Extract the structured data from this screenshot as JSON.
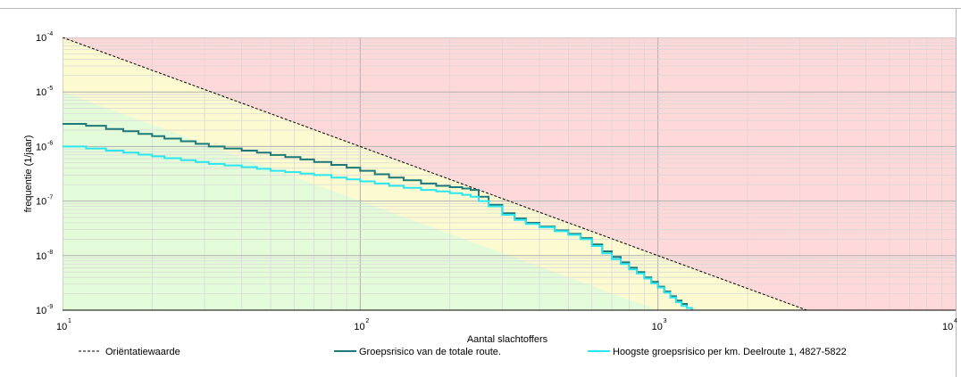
{
  "chart_data": {
    "type": "line",
    "x_scale": "log",
    "y_scale": "log",
    "xlabel": "Aantal slachtoffers",
    "ylabel": "frequentie (1/jaar)",
    "xlim": [
      10,
      10000
    ],
    "ylim": [
      1e-09,
      0.0001
    ],
    "x_ticks": [
      {
        "value": 10,
        "base": "10",
        "exp": "1"
      },
      {
        "value": 100,
        "base": "10",
        "exp": "2"
      },
      {
        "value": 1000,
        "base": "10",
        "exp": "3"
      },
      {
        "value": 10000,
        "base": "10",
        "exp": "4"
      }
    ],
    "y_ticks": [
      {
        "value": 0.0001,
        "base": "10",
        "exp": "-4"
      },
      {
        "value": 1e-05,
        "base": "10",
        "exp": "-5"
      },
      {
        "value": 1e-06,
        "base": "10",
        "exp": "-6"
      },
      {
        "value": 1e-07,
        "base": "10",
        "exp": "-7"
      },
      {
        "value": 1e-08,
        "base": "10",
        "exp": "-8"
      },
      {
        "value": 1e-09,
        "base": "10",
        "exp": "-9"
      }
    ],
    "grid": true,
    "zones": [
      {
        "name": "red",
        "color": "#ffd9d9"
      },
      {
        "name": "yellow",
        "color": "#fbfad0"
      },
      {
        "name": "green",
        "color": "#e4fbd9"
      }
    ],
    "series": [
      {
        "name": "Oriëntatiewaarde",
        "style": "dashed",
        "color": "#000000",
        "x": [
          10,
          3162
        ],
        "y": [
          0.0001,
          1e-09
        ]
      },
      {
        "name": "Groepsrisico van de totale route.",
        "style": "step",
        "color": "#1e7a78",
        "x": [
          10,
          12,
          14,
          16,
          18,
          20,
          22,
          25,
          28,
          31,
          35,
          40,
          45,
          50,
          56,
          63,
          70,
          80,
          90,
          100,
          112,
          125,
          140,
          160,
          180,
          200,
          220,
          235,
          250,
          270,
          300,
          330,
          360,
          400,
          450,
          500,
          550,
          600,
          650,
          700,
          750,
          800,
          850,
          900,
          950,
          1000,
          1050,
          1100,
          1150,
          1200,
          1250,
          1300
        ],
        "y": [
          2.6e-06,
          2.4e-06,
          2.1e-06,
          1.9e-06,
          1.7e-06,
          1.55e-06,
          1.4e-06,
          1.25e-06,
          1.12e-06,
          1e-06,
          9.2e-07,
          8.4e-07,
          7.7e-07,
          7e-07,
          6.4e-07,
          5.8e-07,
          5.2e-07,
          4.6e-07,
          4.1e-07,
          3.6e-07,
          3.1e-07,
          2.7e-07,
          2.4e-07,
          2.1e-07,
          1.9e-07,
          1.8e-07,
          1.7e-07,
          1.6e-07,
          1.2e-07,
          8.5e-08,
          6e-08,
          4.8e-08,
          4e-08,
          3.4e-08,
          2.9e-08,
          2.5e-08,
          2.1e-08,
          1.6e-08,
          1.2e-08,
          9.5e-09,
          7.5e-09,
          6e-09,
          5e-09,
          4e-09,
          3.3e-09,
          2.7e-09,
          2.2e-09,
          1.8e-09,
          1.5e-09,
          1.3e-09,
          1.1e-09,
          1e-09
        ]
      },
      {
        "name": "Hoogste groepsrisico per km. Deelroute 1, 4827-5822",
        "style": "step",
        "color": "#29e6f0",
        "x": [
          10,
          12,
          14,
          16,
          18,
          20,
          22,
          25,
          28,
          31,
          35,
          40,
          45,
          50,
          56,
          63,
          70,
          80,
          90,
          100,
          112,
          125,
          140,
          160,
          180,
          200,
          220,
          235,
          250,
          270,
          300,
          330,
          360,
          400,
          450,
          500,
          550,
          600,
          650,
          700,
          750,
          800,
          850,
          900,
          950,
          1000,
          1050,
          1100,
          1150,
          1200,
          1250,
          1300
        ],
        "y": [
          1e-06,
          9.2e-07,
          8.4e-07,
          7.7e-07,
          7.1e-07,
          6.6e-07,
          6.1e-07,
          5.6e-07,
          5.2e-07,
          4.8e-07,
          4.5e-07,
          4.2e-07,
          3.9e-07,
          3.6e-07,
          3.4e-07,
          3.2e-07,
          3e-07,
          2.7e-07,
          2.5e-07,
          2.3e-07,
          2.1e-07,
          1.9e-07,
          1.75e-07,
          1.6e-07,
          1.5e-07,
          1.4e-07,
          1.3e-07,
          1.2e-07,
          1e-07,
          8e-08,
          5.6e-08,
          4.5e-08,
          3.8e-08,
          3.3e-08,
          2.8e-08,
          2.4e-08,
          2e-08,
          1.5e-08,
          1.1e-08,
          8.6e-09,
          7e-09,
          5.6e-09,
          4.7e-09,
          3.8e-09,
          3.1e-09,
          2.6e-09,
          2.1e-09,
          1.7e-09,
          1.4e-09,
          1.2e-09,
          1.1e-09,
          1e-09
        ]
      }
    ]
  }
}
